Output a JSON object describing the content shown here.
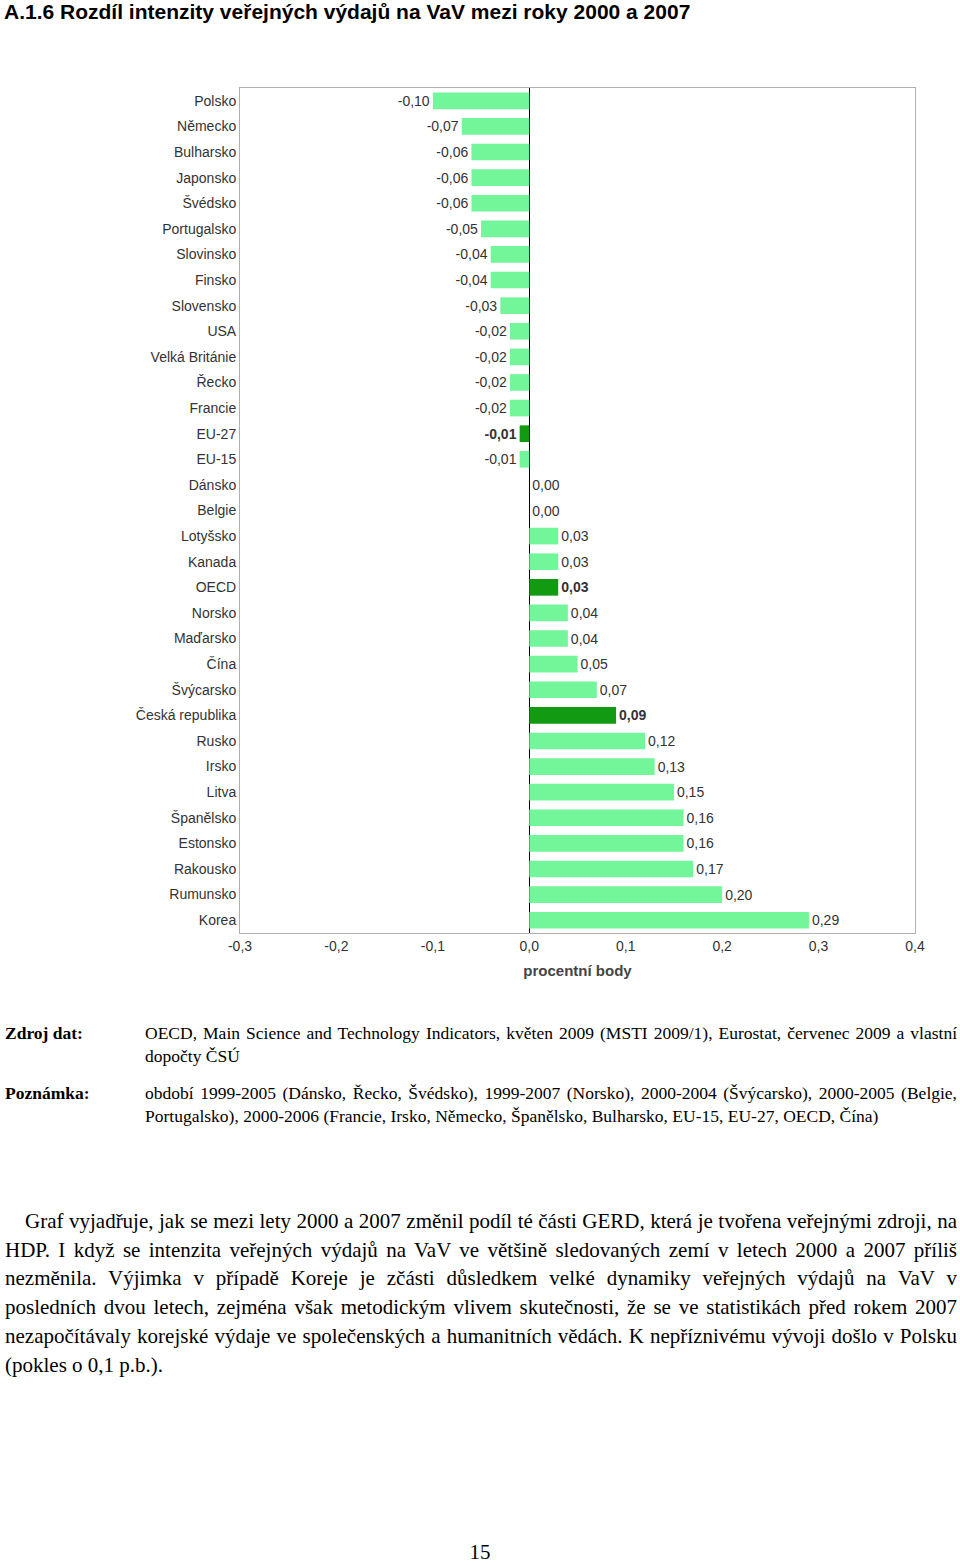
{
  "heading": "A.1.6 Rozdíl intenzity veřejných výdajů na VaV mezi roky 2000 a 2007",
  "chart_data": {
    "type": "bar",
    "orientation": "horizontal",
    "categories": [
      "Polsko",
      "Německo",
      "Bulharsko",
      "Japonsko",
      "Švédsko",
      "Portugalsko",
      "Slovinsko",
      "Finsko",
      "Slovensko",
      "USA",
      "Velká Británie",
      "Řecko",
      "Francie",
      "EU-27",
      "EU-15",
      "Dánsko",
      "Belgie",
      "Lotyšsko",
      "Kanada",
      "OECD",
      "Norsko",
      "Maďarsko",
      "Čína",
      "Švýcarsko",
      "Česká republika",
      "Rusko",
      "Irsko",
      "Litva",
      "Španělsko",
      "Estonsko",
      "Rakousko",
      "Rumunsko",
      "Korea"
    ],
    "values": [
      -0.1,
      -0.07,
      -0.06,
      -0.06,
      -0.06,
      -0.05,
      -0.04,
      -0.04,
      -0.03,
      -0.02,
      -0.02,
      -0.02,
      -0.02,
      -0.01,
      -0.01,
      0.0,
      0.0,
      0.03,
      0.03,
      0.03,
      0.04,
      0.04,
      0.05,
      0.07,
      0.09,
      0.12,
      0.13,
      0.15,
      0.16,
      0.16,
      0.17,
      0.2,
      0.29
    ],
    "value_labels": [
      "-0,10",
      "-0,07",
      "-0,06",
      "-0,06",
      "-0,06",
      "-0,05",
      "-0,04",
      "-0,04",
      "-0,03",
      "-0,02",
      "-0,02",
      "-0,02",
      "-0,02",
      "-0,01",
      "-0,01",
      "0,00",
      "0,00",
      "0,03",
      "0,03",
      "0,03",
      "0,04",
      "0,04",
      "0,05",
      "0,07",
      "0,09",
      "0,12",
      "0,13",
      "0,15",
      "0,16",
      "0,16",
      "0,17",
      "0,20",
      "0,29"
    ],
    "colors": [
      "#73f59a",
      "#73f59a",
      "#73f59a",
      "#73f59a",
      "#73f59a",
      "#73f59a",
      "#73f59a",
      "#73f59a",
      "#73f59a",
      "#73f59a",
      "#73f59a",
      "#73f59a",
      "#73f59a",
      "#129a12",
      "#73f59a",
      "#73f59a",
      "#73f59a",
      "#73f59a",
      "#73f59a",
      "#129a12",
      "#73f59a",
      "#73f59a",
      "#73f59a",
      "#73f59a",
      "#129a12",
      "#73f59a",
      "#73f59a",
      "#73f59a",
      "#73f59a",
      "#73f59a",
      "#73f59a",
      "#73f59a",
      "#73f59a"
    ],
    "data_labels": true,
    "xlabel": "procentní body",
    "xlim": [
      -0.3,
      0.4
    ],
    "xticks": [
      {
        "value": -0.3,
        "label": "-0,3"
      },
      {
        "value": -0.2,
        "label": "-0,2"
      },
      {
        "value": -0.1,
        "label": "-0,1"
      },
      {
        "value": 0,
        "label": "0,0"
      },
      {
        "value": 0.1,
        "label": "0,1"
      },
      {
        "value": 0.2,
        "label": "0,2"
      },
      {
        "value": 0.3,
        "label": "0,3"
      },
      {
        "value": 0.4,
        "label": "0,4"
      }
    ],
    "grid": false
  },
  "source": {
    "label": "Zdroj dat:",
    "text": "OECD, Main Science and Technology Indicators, květen 2009 (MSTI 2009/1), Eurostat, červenec 2009 a vlastní dopočty ČSÚ"
  },
  "note": {
    "label": "Poznámka:",
    "text": "období 1999-2005 (Dánsko, Řecko, Švédsko), 1999-2007 (Norsko), 2000-2004 (Švýcarsko), 2000-2005 (Belgie, Portugalsko), 2000-2006 (Francie, Irsko, Německo, Španělsko, Bulharsko, EU-15, EU-27, OECD, Čína)"
  },
  "body": "Graf vyjadřuje, jak se mezi lety 2000 a 2007 změnil podíl té části GERD, která je tvořena veřejnými zdroji, na HDP. I když se intenzita veřejných výdajů na VaV ve většině sledovaných zemí v letech 2000 a 2007 příliš nezměnila. Výjimka v případě Koreje je zčásti důsledkem velké dynamiky veřejných výdajů na VaV v posledních dvou letech, zejména však metodickým vlivem skutečnosti, že se ve statistikách před rokem 2007 nezapočítávaly korejské výdaje ve společenských a humanitních vědách. K nepříznivému vývoji došlo v Polsku (pokles o 0,1 p.b.).",
  "page_number": "15"
}
